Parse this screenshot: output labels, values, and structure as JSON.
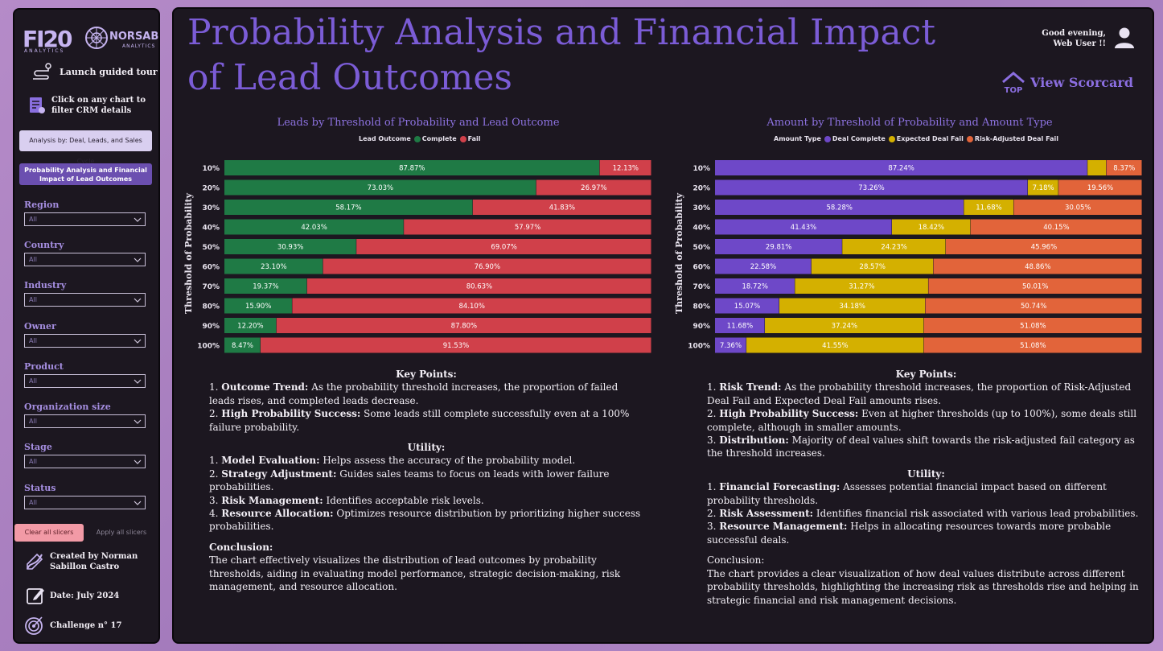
{
  "sidebar": {
    "logo_fi": "FI20",
    "logo_fi_sub": "ANALYTICS",
    "logo_norsab": "NORSAB",
    "logo_norsab_sub": "ANALYTICS",
    "tour_label": "Launch guided tour",
    "filter_hint": "Click on any chart to filter CRM details",
    "nav_deal": "Analysis by: Deal, Leads, and Sales Cycle",
    "nav_prob": "Probability Analysis and Financial Impact of Lead Outcomes",
    "slicers": [
      {
        "label": "Region",
        "value": "All"
      },
      {
        "label": "Country",
        "value": "All"
      },
      {
        "label": "Industry",
        "value": "All"
      },
      {
        "label": "Owner",
        "value": "All"
      },
      {
        "label": "Product",
        "value": "All"
      },
      {
        "label": "Organization size",
        "value": "All"
      },
      {
        "label": "Stage",
        "value": "All"
      },
      {
        "label": "Status",
        "value": "All"
      }
    ],
    "clear_label": "Clear all slicers",
    "apply_label": "Apply all slicers",
    "created_by": "Created by Norman Sabillon Castro",
    "date": "Date: July 2024",
    "challenge": "Challenge n° 17"
  },
  "header": {
    "title": "Probability Analysis and Financial Impact of Lead Outcomes",
    "greeting_line1": "Good evening,",
    "greeting_line2": "Web User !!",
    "top_badge": "TOP",
    "scorecard_label": "View Scorcard"
  },
  "chart_data": [
    {
      "type": "bar",
      "orientation": "horizontal-stacked-100",
      "title": "Leads by Threshold of Probability and Lead Outcome",
      "legend_title": "Lead Outcome",
      "ylabel": "Threshold of Probability",
      "categories": [
        "10%",
        "20%",
        "30%",
        "40%",
        "50%",
        "60%",
        "70%",
        "80%",
        "90%",
        "100%"
      ],
      "series": [
        {
          "name": "Complete",
          "color": "#1f7a45",
          "values": [
            87.87,
            73.03,
            58.17,
            42.03,
            30.93,
            23.1,
            19.37,
            15.9,
            12.2,
            8.47
          ]
        },
        {
          "name": "Fail",
          "color": "#d0404a",
          "values": [
            12.13,
            26.97,
            41.83,
            57.97,
            69.07,
            76.9,
            80.63,
            84.1,
            87.8,
            91.53
          ]
        }
      ],
      "labels": [
        [
          "87.87%",
          "12.13%"
        ],
        [
          "73.03%",
          "26.97%"
        ],
        [
          "58.17%",
          "41.83%"
        ],
        [
          "42.03%",
          "57.97%"
        ],
        [
          "30.93%",
          "69.07%"
        ],
        [
          "23.10%",
          "76.90%"
        ],
        [
          "19.37%",
          "80.63%"
        ],
        [
          "15.90%",
          "84.10%"
        ],
        [
          "12.20%",
          "87.80%"
        ],
        [
          "8.47%",
          "91.53%"
        ]
      ]
    },
    {
      "type": "bar",
      "orientation": "horizontal-stacked-100",
      "title": "Amount by Threshold of Probability and Amount Type",
      "legend_title": "Amount Type",
      "ylabel": "Threshold of Probability",
      "categories": [
        "10%",
        "20%",
        "30%",
        "40%",
        "50%",
        "60%",
        "70%",
        "80%",
        "90%",
        "100%"
      ],
      "series": [
        {
          "name": "Deal Complete",
          "color": "#6e48c8",
          "values": [
            87.24,
            73.26,
            58.28,
            41.43,
            29.81,
            22.58,
            18.72,
            15.07,
            11.68,
            7.36
          ]
        },
        {
          "name": "Expected Deal Fail",
          "color": "#d4b000",
          "values": [
            4.39,
            7.18,
            11.68,
            18.42,
            24.23,
            28.57,
            31.27,
            34.18,
            37.24,
            41.55
          ]
        },
        {
          "name": "Risk-Adjusted Deal Fail",
          "color": "#e2643a",
          "values": [
            8.37,
            19.56,
            30.05,
            40.15,
            45.96,
            48.86,
            50.01,
            50.74,
            51.08,
            51.08
          ]
        }
      ],
      "labels": [
        [
          "87.24%",
          "",
          "8.37%"
        ],
        [
          "73.26%",
          "7.18%",
          "19.56%"
        ],
        [
          "58.28%",
          "11.68%",
          "30.05%"
        ],
        [
          "41.43%",
          "18.42%",
          "40.15%"
        ],
        [
          "29.81%",
          "24.23%",
          "45.96%"
        ],
        [
          "22.58%",
          "28.57%",
          "48.86%"
        ],
        [
          "18.72%",
          "31.27%",
          "50.01%"
        ],
        [
          "15.07%",
          "34.18%",
          "50.74%"
        ],
        [
          "11.68%",
          "37.24%",
          "51.08%"
        ],
        [
          "7.36%",
          "41.55%",
          "51.08%"
        ]
      ]
    }
  ],
  "notes_left": {
    "kp_heading": "Key Points:",
    "kp1_lead": "1. ",
    "kp1_b": "Outcome Trend:",
    "kp1_t": " As the probability threshold increases, the proportion of failed leads rises, and completed leads decrease.",
    "kp2_lead": "2. ",
    "kp2_b": "High Probability Success:",
    "kp2_t": " Some leads still complete successfully even at a 100% failure probability.",
    "ut_heading": "Utility:",
    "ut1_lead": "1. ",
    "ut1_b": "Model Evaluation:",
    "ut1_t": " Helps assess the accuracy of the probability model.",
    "ut2_lead": "2. ",
    "ut2_b": "Strategy Adjustment:",
    "ut2_t": " Guides sales teams to focus on leads with lower failure probabilities.",
    "ut3_lead": "3. ",
    "ut3_b": "Risk Management:",
    "ut3_t": " Identifies acceptable risk levels.",
    "ut4_lead": "4. ",
    "ut4_b": "Resource Allocation:",
    "ut4_t": " Optimizes resource distribution by prioritizing higher success probabilities.",
    "conc_heading": "Conclusion:",
    "conc_text": "The chart effectively visualizes the distribution of lead outcomes by probability thresholds, aiding in evaluating model performance, strategic decision-making, risk management, and resource allocation."
  },
  "notes_right": {
    "kp_heading": "Key Points:",
    "kp1_lead": "1. ",
    "kp1_b": "Risk Trend:",
    "kp1_t": " As the probability threshold increases, the proportion of Risk-Adjusted Deal Fail and Expected Deal Fail amounts rises.",
    "kp2_lead": "2. ",
    "kp2_b": "High Probability Success:",
    "kp2_t": " Even at higher thresholds (up to 100%), some deals still complete, although in smaller amounts.",
    "kp3_lead": "3. ",
    "kp3_b": "Distribution:",
    "kp3_t": " Majority of deal values shift towards the risk-adjusted fail category as the threshold increases.",
    "ut_heading": "Utility:",
    "ut1_lead": "1. ",
    "ut1_b": "Financial Forecasting:",
    "ut1_t": " Assesses potential financial impact based on different probability thresholds.",
    "ut2_lead": "2. ",
    "ut2_b": "Risk Assessment:",
    "ut2_t": " Identifies financial risk associated with various lead probabilities.",
    "ut3_lead": "3. ",
    "ut3_b": "Resource Management:",
    "ut3_t": " Helps in allocating resources towards more probable successful deals.",
    "conc_heading": "Conclusion:",
    "conc_text": "The chart provides a clear visualization of how deal values distribute across different probability thresholds, highlighting the increasing risk as thresholds rise and helping in strategic financial and risk management decisions."
  }
}
